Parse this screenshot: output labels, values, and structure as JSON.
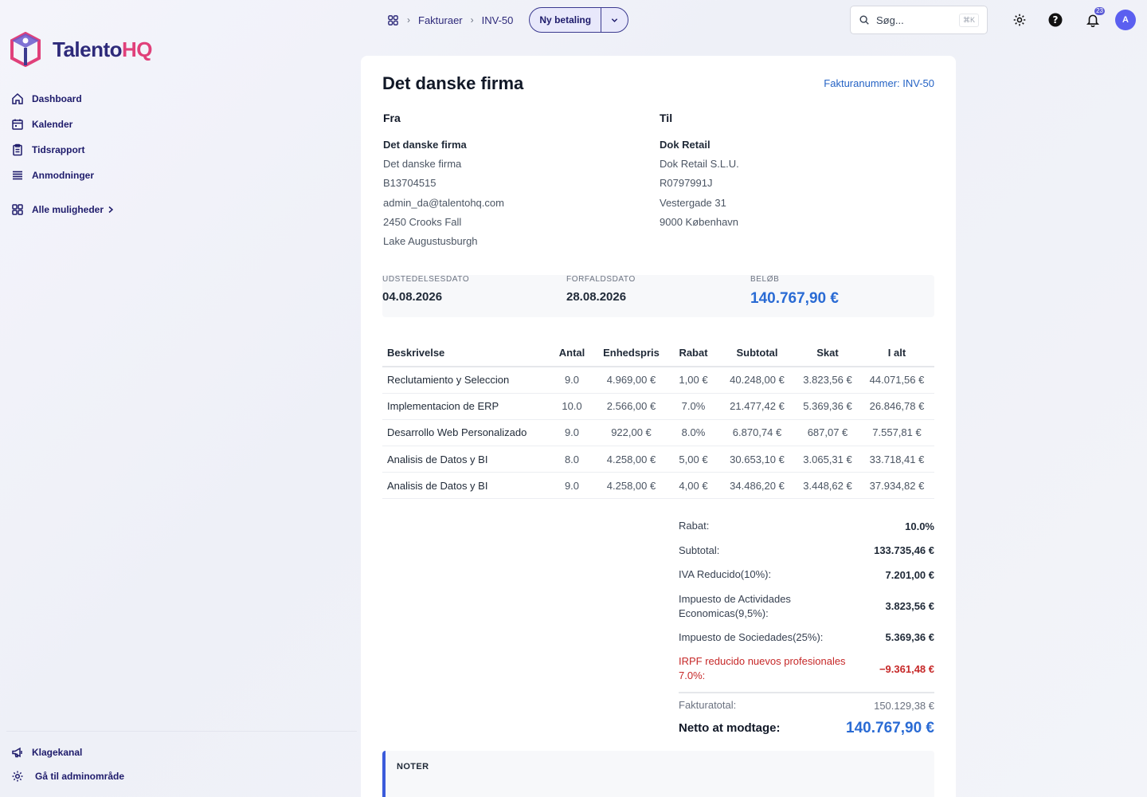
{
  "app": {
    "brand_main": "Talento",
    "brand_accent": "HQ"
  },
  "sidebar": {
    "items": [
      {
        "label": "Dashboard",
        "icon": "home-icon"
      },
      {
        "label": "Kalender",
        "icon": "calendar-icon"
      },
      {
        "label": "Tidsrapport",
        "icon": "clipboard-icon"
      },
      {
        "label": "Anmodninger",
        "icon": "list-icon"
      }
    ],
    "all_options": "Alle muligheder",
    "bottom": [
      {
        "label": "Klagekanal",
        "icon": "megaphone-icon"
      },
      {
        "label": "Gå til adminområde",
        "icon": "gear-icon"
      }
    ]
  },
  "topbar": {
    "breadcrumb": [
      "Fakturaer",
      "INV-50"
    ],
    "new_payment": "Ny betaling",
    "search_placeholder": "Søg...",
    "search_shortcut": "⌘K",
    "notifications_count": "23",
    "avatar_initial": "A"
  },
  "invoice": {
    "company": "Det danske firma",
    "invoice_number": "Fakturanummer: INV-50",
    "from": {
      "heading": "Fra",
      "name": "Det danske firma",
      "lines": [
        "Det danske firma",
        "B13704515",
        "admin_da@talentohq.com",
        "2450 Crooks Fall",
        "Lake Augustusburgh"
      ]
    },
    "to": {
      "heading": "Til",
      "name": "Dok Retail",
      "lines": [
        "Dok Retail S.L.U.",
        "R0797991J",
        "Vestergade 31",
        "9000 København"
      ]
    },
    "meta": {
      "issue_label": "UDSTEDELSESDATO",
      "issue_date": "04.08.2026",
      "due_label": "FORFALDSDATO",
      "due_date": "28.08.2026",
      "amount_label": "BELØB",
      "amount": "140.767,90 €"
    },
    "columns": [
      "Beskrivelse",
      "Antal",
      "Enhedspris",
      "Rabat",
      "Subtotal",
      "Skat",
      "I alt"
    ],
    "rows": [
      [
        "Reclutamiento y Seleccion",
        "9.0",
        "4.969,00 €",
        "1,00 €",
        "40.248,00 €",
        "3.823,56 €",
        "44.071,56 €"
      ],
      [
        "Implementacion de ERP",
        "10.0",
        "2.566,00 €",
        "7.0%",
        "21.477,42 €",
        "5.369,36 €",
        "26.846,78 €"
      ],
      [
        "Desarrollo Web Personalizado",
        "9.0",
        "922,00 €",
        "8.0%",
        "6.870,74 €",
        "687,07 €",
        "7.557,81 €"
      ],
      [
        "Analisis de Datos y BI",
        "8.0",
        "4.258,00 €",
        "5,00 €",
        "30.653,10 €",
        "3.065,31 €",
        "33.718,41 €"
      ],
      [
        "Analisis de Datos y BI",
        "9.0",
        "4.258,00 €",
        "4,00 €",
        "34.486,20 €",
        "3.448,62 €",
        "37.934,82 €"
      ]
    ],
    "totals": {
      "discount_label": "Rabat:",
      "discount": "10.0%",
      "subtotal_label": "Subtotal:",
      "subtotal": "133.735,46 €",
      "iva_label": "IVA Reducido(10%):",
      "iva": "7.201,00 €",
      "iae_label": "Impuesto de Actividades Economicas(9,5%):",
      "iae": "3.823,56 €",
      "is_label": "Impuesto de Sociedades(25%):",
      "is": "5.369,36 €",
      "irpf_label": "IRPF reducido nuevos profesionales 7.0%:",
      "irpf": "−9.361,48 €",
      "total_label": "Fakturatotal:",
      "total": "150.129,38 €",
      "net_label": "Netto at modtage:",
      "net": "140.767,90 €"
    },
    "notes_label": "NOTER"
  },
  "colors": {
    "accent": "#2a6bd4",
    "brand": "#2e2a7a",
    "brand_accent": "#e0407a",
    "negative": "#c62828"
  }
}
